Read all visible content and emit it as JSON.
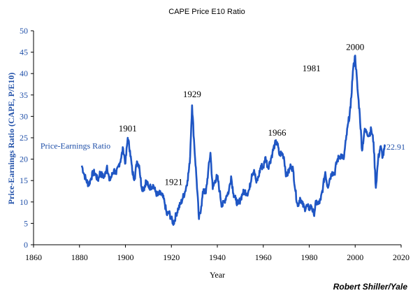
{
  "chart_data": {
    "type": "line",
    "title": "CAPE Price E10 Ratio",
    "xlabel": "Year",
    "ylabel": "Price-Earnings Ratio (CAPE, P/E10)",
    "xlim": [
      1860,
      2020
    ],
    "ylim": [
      0,
      50
    ],
    "x_ticks": [
      "1860",
      "1880",
      "1900",
      "1920",
      "1940",
      "1960",
      "1980",
      "2000",
      "2020"
    ],
    "y_ticks": [
      "0",
      "5",
      "10",
      "15",
      "20",
      "25",
      "30",
      "35",
      "40",
      "45",
      "50"
    ],
    "grid": false,
    "legend": "none",
    "series": [
      {
        "name": "Price-Earnings Ratio",
        "color": "#1f56c4",
        "points": [
          [
            1881,
            18.5
          ],
          [
            1882,
            16.5
          ],
          [
            1883,
            15.0
          ],
          [
            1884,
            14.0
          ],
          [
            1885,
            15.5
          ],
          [
            1886,
            17.0
          ],
          [
            1887,
            16.5
          ],
          [
            1888,
            15.0
          ],
          [
            1889,
            17.0
          ],
          [
            1890,
            16.0
          ],
          [
            1891,
            16.0
          ],
          [
            1892,
            18.5
          ],
          [
            1893,
            15.0
          ],
          [
            1894,
            16.0
          ],
          [
            1895,
            17.5
          ],
          [
            1896,
            16.5
          ],
          [
            1897,
            18.5
          ],
          [
            1898,
            20.0
          ],
          [
            1899,
            22.5
          ],
          [
            1900,
            19.0
          ],
          [
            1901,
            25.0
          ],
          [
            1902,
            22.0
          ],
          [
            1903,
            17.0
          ],
          [
            1904,
            15.5
          ],
          [
            1905,
            19.5
          ],
          [
            1906,
            18.5
          ],
          [
            1907,
            13.5
          ],
          [
            1908,
            13.0
          ],
          [
            1909,
            15.0
          ],
          [
            1910,
            13.5
          ],
          [
            1911,
            13.5
          ],
          [
            1912,
            14.0
          ],
          [
            1913,
            12.5
          ],
          [
            1914,
            11.5
          ],
          [
            1915,
            12.0
          ],
          [
            1916,
            11.5
          ],
          [
            1917,
            10.0
          ],
          [
            1918,
            7.0
          ],
          [
            1919,
            7.5
          ],
          [
            1920,
            6.0
          ],
          [
            1921,
            5.0
          ],
          [
            1922,
            7.0
          ],
          [
            1923,
            8.5
          ],
          [
            1924,
            9.5
          ],
          [
            1925,
            11.0
          ],
          [
            1926,
            12.5
          ],
          [
            1927,
            15.0
          ],
          [
            1928,
            19.0
          ],
          [
            1929,
            32.6
          ],
          [
            1930,
            23.0
          ],
          [
            1931,
            15.0
          ],
          [
            1932,
            6.0
          ],
          [
            1933,
            9.0
          ],
          [
            1934,
            13.0
          ],
          [
            1935,
            12.0
          ],
          [
            1936,
            17.0
          ],
          [
            1937,
            21.5
          ],
          [
            1938,
            13.0
          ],
          [
            1939,
            15.0
          ],
          [
            1940,
            16.0
          ],
          [
            1941,
            12.5
          ],
          [
            1942,
            9.0
          ],
          [
            1943,
            10.0
          ],
          [
            1944,
            11.5
          ],
          [
            1945,
            12.5
          ],
          [
            1946,
            16.0
          ],
          [
            1947,
            12.0
          ],
          [
            1948,
            10.5
          ],
          [
            1949,
            9.5
          ],
          [
            1950,
            10.5
          ],
          [
            1951,
            12.0
          ],
          [
            1952,
            12.5
          ],
          [
            1953,
            12.0
          ],
          [
            1954,
            13.0
          ],
          [
            1955,
            16.5
          ],
          [
            1956,
            17.5
          ],
          [
            1957,
            14.5
          ],
          [
            1958,
            16.0
          ],
          [
            1959,
            18.5
          ],
          [
            1960,
            18.0
          ],
          [
            1961,
            20.5
          ],
          [
            1962,
            18.0
          ],
          [
            1963,
            19.5
          ],
          [
            1964,
            21.5
          ],
          [
            1965,
            23.5
          ],
          [
            1966,
            24.0
          ],
          [
            1967,
            21.0
          ],
          [
            1968,
            21.5
          ],
          [
            1969,
            20.5
          ],
          [
            1970,
            16.0
          ],
          [
            1971,
            17.0
          ],
          [
            1972,
            18.5
          ],
          [
            1973,
            17.5
          ],
          [
            1974,
            12.5
          ],
          [
            1975,
            9.0
          ],
          [
            1976,
            11.0
          ],
          [
            1977,
            9.5
          ],
          [
            1978,
            8.5
          ],
          [
            1979,
            9.0
          ],
          [
            1980,
            8.5
          ],
          [
            1981,
            9.0
          ],
          [
            1982,
            7.0
          ],
          [
            1983,
            10.0
          ],
          [
            1984,
            9.5
          ],
          [
            1985,
            10.5
          ],
          [
            1986,
            13.5
          ],
          [
            1987,
            17.0
          ],
          [
            1988,
            13.5
          ],
          [
            1989,
            15.5
          ],
          [
            1990,
            17.0
          ],
          [
            1991,
            16.5
          ],
          [
            1992,
            19.5
          ],
          [
            1993,
            20.5
          ],
          [
            1994,
            21.0
          ],
          [
            1995,
            20.0
          ],
          [
            1996,
            24.5
          ],
          [
            1997,
            28.5
          ],
          [
            1998,
            32.0
          ],
          [
            1999,
            40.5
          ],
          [
            2000,
            44.2
          ],
          [
            2001,
            36.5
          ],
          [
            2002,
            30.5
          ],
          [
            2003,
            22.0
          ],
          [
            2004,
            26.5
          ],
          [
            2005,
            26.5
          ],
          [
            2006,
            25.5
          ],
          [
            2007,
            27.0
          ],
          [
            2008,
            24.0
          ],
          [
            2009,
            13.3
          ],
          [
            2010,
            20.0
          ],
          [
            2011,
            23.0
          ],
          [
            2012,
            20.5
          ],
          [
            2013,
            22.9
          ]
        ]
      }
    ],
    "annotations": [
      {
        "text": "1901",
        "x": 1901,
        "y": 26.5
      },
      {
        "text": "1921",
        "x": 1921,
        "y": 14.0
      },
      {
        "text": "1929",
        "x": 1929,
        "y": 34.5
      },
      {
        "text": "1966",
        "x": 1966,
        "y": 25.5
      },
      {
        "text": "1981",
        "x": 1981,
        "y": 40.5
      },
      {
        "text": "2000",
        "x": 2000,
        "y": 45.5
      }
    ],
    "series_label": {
      "text": "Price-Earnings Ratio",
      "x": 1863,
      "y": 22.5
    },
    "last_value_label": {
      "text": "22.91",
      "x": 2013,
      "y": 22.9
    },
    "credit": "Robert Shiller/Yale"
  }
}
